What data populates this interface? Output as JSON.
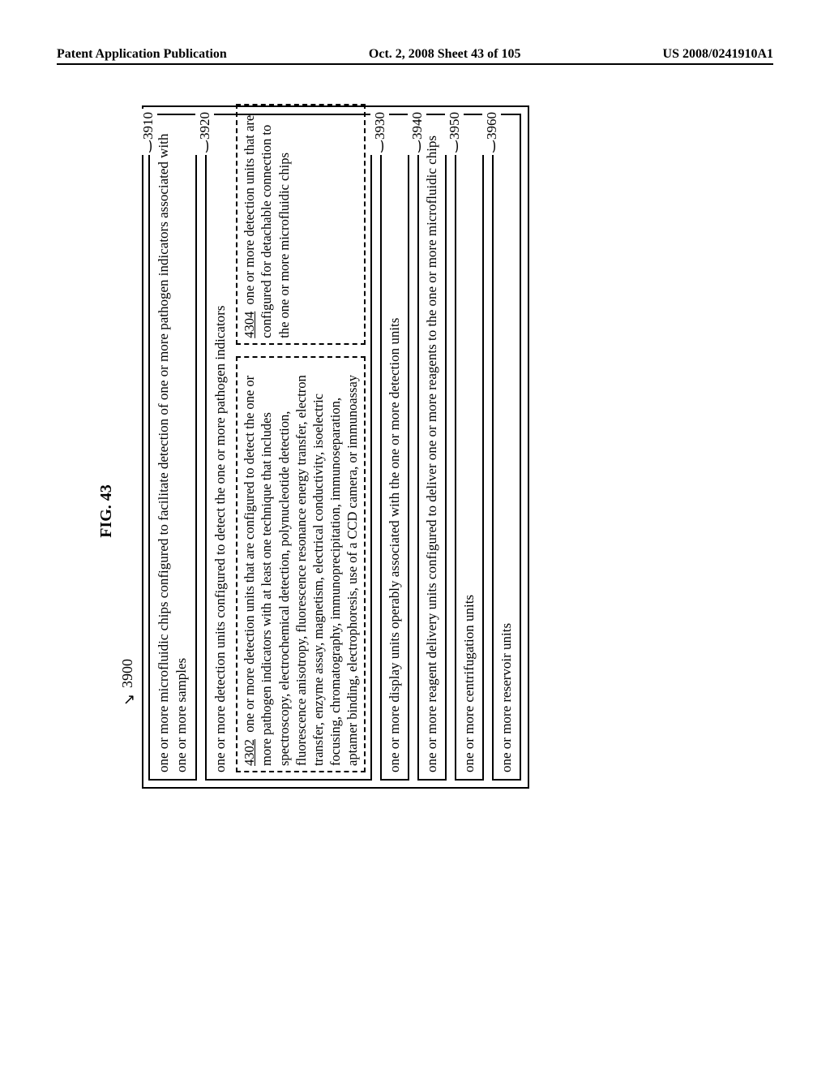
{
  "header": {
    "left": "Patent Application Publication",
    "center": "Oct. 2, 2008  Sheet 43 of 105",
    "right": "US 2008/0241910A1"
  },
  "figure": {
    "title": "FIG. 43",
    "top_ref": "3900"
  },
  "boxes": {
    "b3910": {
      "label": "3910",
      "text": "one or more microfluidic chips configured to facilitate detection of one or more pathogen indicators associated with one or more samples"
    },
    "b3920": {
      "label": "3920",
      "text": "one or more detection units configured to detect the one or more pathogen indicators",
      "d4302": {
        "ref": "4302",
        "text": "one or more detection units that are configured to detect the one or more pathogen indicators with at least one technique that includes spectroscopy, electrochemical detection, polynucleotide detection, fluorescence anisotropy, fluorescence resonance energy transfer, electron transfer, enzyme assay, magnetism, electrical conductivity, isoelectric focusing, chromatography, immunoprecipitation, immunoseparation, aptamer binding, electrophoresis, use of a CCD camera, or immunoassay"
      },
      "d4304": {
        "ref": "4304",
        "text": "one or more detection units that are configured for detachable connection to the one or more microfluidic chips"
      }
    },
    "b3930": {
      "label": "3930",
      "text": "one or more display units operably associated with the one or more detection units"
    },
    "b3940": {
      "label": "3940",
      "text": "one or more reagent delivery units configured to deliver one or more reagents to the one or more microfluidic chips"
    },
    "b3950": {
      "label": "3950",
      "text": "one or more centrifugation units"
    },
    "b3960": {
      "label": "3960",
      "text": "one or more reservoir units"
    }
  }
}
